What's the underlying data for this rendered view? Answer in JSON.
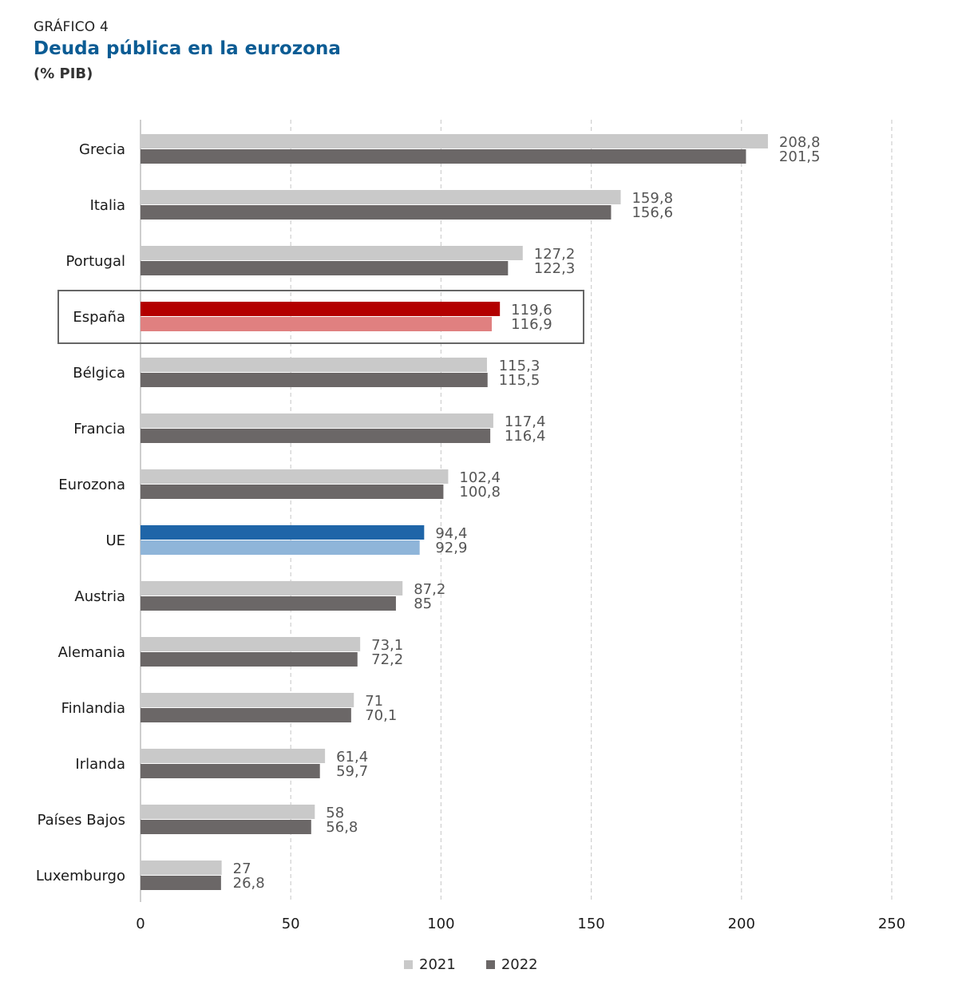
{
  "header": {
    "kicker": "GRÁFICO 4",
    "title": "Deuda pública en la eurozona",
    "subtitle": "(% PIB)"
  },
  "colors": {
    "s2021": "#c9c9c9",
    "s2022": "#6b6767",
    "espana_2021": "#b30000",
    "espana_2022": "#e08080",
    "ue_2021": "#1f65a8",
    "ue_2022": "#8fb5d9",
    "grid": "#cfcfcf",
    "highlight_box": "#666666"
  },
  "chart_data": {
    "type": "bar",
    "orientation": "horizontal",
    "categories": [
      "Grecia",
      "Italia",
      "Portugal",
      "España",
      "Bélgica",
      "Francia",
      "Eurozona",
      "UE",
      "Austria",
      "Alemania",
      "Finlandia",
      "Irlanda",
      "Países Bajos",
      "Luxemburgo"
    ],
    "series": [
      {
        "name": "2021",
        "values": [
          208.8,
          159.8,
          127.2,
          119.6,
          115.3,
          117.4,
          102.4,
          94.4,
          87.2,
          73.1,
          71,
          61.4,
          58,
          27
        ]
      },
      {
        "name": "2022",
        "values": [
          201.5,
          156.6,
          122.3,
          116.9,
          115.5,
          116.4,
          100.8,
          92.9,
          85,
          72.2,
          70.1,
          59.7,
          56.8,
          26.8
        ]
      }
    ],
    "value_labels": [
      [
        "208,8",
        "201,5"
      ],
      [
        "159,8",
        "156,6"
      ],
      [
        "127,2",
        "122,3"
      ],
      [
        "119,6",
        "116,9"
      ],
      [
        "115,3",
        "115,5"
      ],
      [
        "117,4",
        "116,4"
      ],
      [
        "102,4",
        "100,8"
      ],
      [
        "94,4",
        "92,9"
      ],
      [
        "87,2",
        "85"
      ],
      [
        "73,1",
        "72,2"
      ],
      [
        "71",
        "70,1"
      ],
      [
        "61,4",
        "59,7"
      ],
      [
        "58",
        "56,8"
      ],
      [
        "27",
        "26,8"
      ]
    ],
    "xlim": [
      0,
      250
    ],
    "xticks": [
      "0",
      "50",
      "100",
      "150",
      "200",
      "250"
    ],
    "grid": true,
    "highlighted_category": "España",
    "legend_position": "bottom-center"
  },
  "legend": {
    "items": [
      "2021",
      "2022"
    ]
  }
}
